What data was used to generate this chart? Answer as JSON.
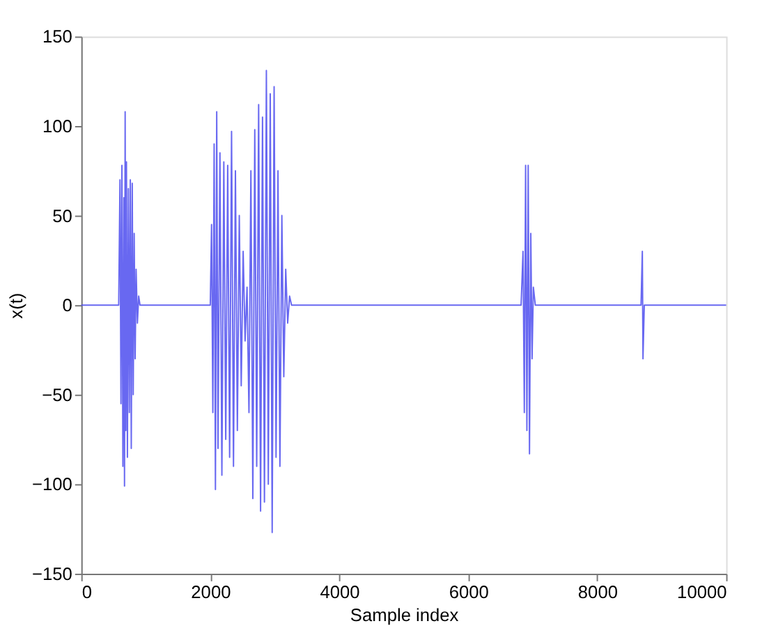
{
  "chart_data": {
    "type": "line",
    "xlabel": "Sample index",
    "ylabel": "x(t)",
    "xlim": [
      0,
      10000
    ],
    "xticks": [
      0,
      2000,
      4000,
      6000,
      8000,
      10000
    ],
    "ylim": [
      -150,
      150
    ],
    "yticks": [
      -150,
      -100,
      -50,
      0,
      50,
      100,
      150
    ],
    "grid": false,
    "legend": false,
    "marker": "none",
    "line_style": "solid",
    "x": [
      0,
      500,
      580,
      600,
      615,
      630,
      645,
      660,
      670,
      680,
      690,
      700,
      715,
      730,
      745,
      760,
      775,
      790,
      805,
      820,
      835,
      850,
      870,
      890,
      910,
      2000,
      2020,
      2040,
      2060,
      2080,
      2100,
      2120,
      2150,
      2180,
      2210,
      2240,
      2270,
      2300,
      2330,
      2360,
      2390,
      2420,
      2450,
      2480,
      2510,
      2540,
      2570,
      2600,
      2630,
      2660,
      2690,
      2720,
      2750,
      2780,
      2810,
      2840,
      2870,
      2900,
      2930,
      2960,
      2990,
      3020,
      3050,
      3080,
      3110,
      3140,
      3170,
      3200,
      3230,
      3260,
      6820,
      6850,
      6870,
      6890,
      6910,
      6930,
      6950,
      6970,
      6990,
      7010,
      7040,
      8680,
      8700,
      8710,
      8730,
      10000
    ],
    "series": [
      {
        "color": "#4d4dee",
        "values": [
          0,
          0,
          0,
          70,
          -55,
          78,
          -90,
          60,
          -101,
          108,
          -70,
          80,
          -85,
          65,
          -60,
          70,
          -80,
          68,
          -50,
          40,
          -30,
          20,
          -10,
          5,
          0,
          0,
          45,
          -60,
          90,
          -103,
          108,
          -80,
          85,
          -95,
          80,
          -75,
          78,
          -85,
          97,
          -90,
          75,
          -70,
          50,
          -45,
          30,
          -20,
          10,
          -60,
          75,
          -108,
          98,
          -90,
          112,
          -115,
          105,
          -110,
          131,
          -100,
          118,
          -127,
          122,
          -85,
          75,
          -90,
          50,
          -40,
          20,
          -10,
          5,
          0,
          0,
          30,
          -60,
          78,
          -70,
          78,
          -83,
          40,
          -30,
          10,
          0,
          0,
          30,
          -30,
          0,
          0
        ]
      }
    ]
  }
}
